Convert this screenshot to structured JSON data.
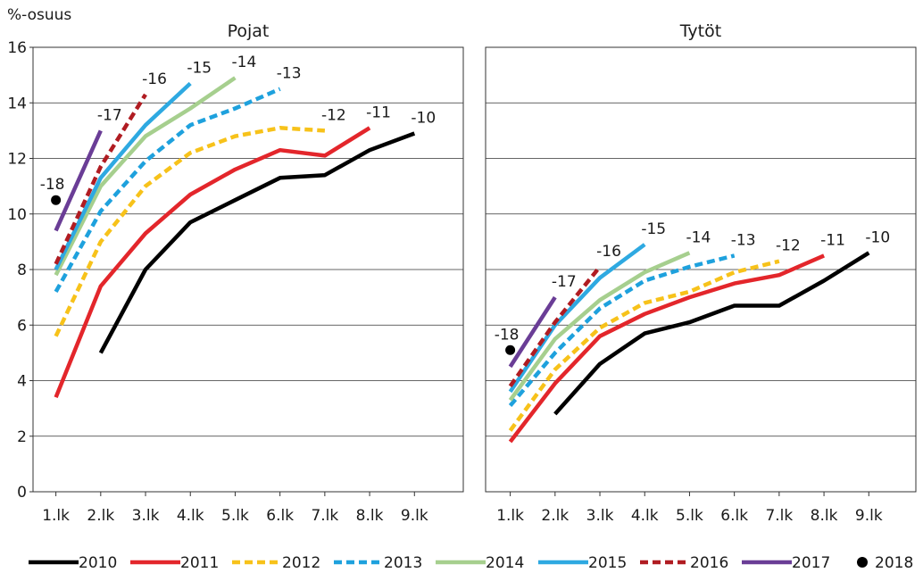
{
  "chart_data": {
    "type": "line",
    "ylabel": "%-osuus",
    "ylim": [
      0,
      16
    ],
    "yticks": [
      "0",
      "2",
      "4",
      "6",
      "8",
      "10",
      "12",
      "14",
      "16"
    ],
    "categories": [
      "1.lk",
      "2.lk",
      "3.lk",
      "4.lk",
      "5.lk",
      "6.lk",
      "7.lk",
      "8.lk",
      "9.lk"
    ],
    "grid": "horizontal",
    "legend_position": "bottom",
    "legend": [
      {
        "name": "2010",
        "color": "#000000",
        "style": "solid",
        "marker": "line"
      },
      {
        "name": "2011",
        "color": "#e3262b",
        "style": "solid",
        "marker": "line"
      },
      {
        "name": "2012",
        "color": "#f7c21a",
        "style": "dashed",
        "marker": "line"
      },
      {
        "name": "2013",
        "color": "#1ea1dd",
        "style": "dashed",
        "marker": "line"
      },
      {
        "name": "2014",
        "color": "#a6cf8e",
        "style": "solid",
        "marker": "line"
      },
      {
        "name": "2015",
        "color": "#2ea9e1",
        "style": "solid",
        "marker": "line"
      },
      {
        "name": "2016",
        "color": "#b01c22",
        "style": "dashed",
        "marker": "line"
      },
      {
        "name": "2017",
        "color": "#6a3d96",
        "style": "solid",
        "marker": "line"
      },
      {
        "name": "2018",
        "color": "#000000",
        "style": "none",
        "marker": "dot"
      }
    ],
    "panels": [
      {
        "title": "Pojat",
        "series": [
          {
            "legend": "2010",
            "label": "-10",
            "start": 1,
            "values": [
              5.0,
              8.0,
              9.7,
              10.5,
              11.3,
              11.4,
              12.3,
              12.9
            ]
          },
          {
            "legend": "2011",
            "label": "-11",
            "start": 0,
            "values": [
              3.4,
              7.4,
              9.3,
              10.7,
              11.6,
              12.3,
              12.1,
              13.1
            ]
          },
          {
            "legend": "2012",
            "label": "-12",
            "start": 0,
            "values": [
              5.6,
              9.0,
              11.0,
              12.2,
              12.8,
              13.1,
              13.0
            ]
          },
          {
            "legend": "2013",
            "label": "-13",
            "start": 0,
            "values": [
              7.2,
              10.1,
              11.9,
              13.2,
              13.8,
              14.5
            ]
          },
          {
            "legend": "2014",
            "label": "-14",
            "start": 0,
            "values": [
              7.8,
              11.0,
              12.8,
              13.8,
              14.9
            ]
          },
          {
            "legend": "2015",
            "label": "-15",
            "start": 0,
            "values": [
              8.0,
              11.3,
              13.2,
              14.7
            ]
          },
          {
            "legend": "2016",
            "label": "-16",
            "start": 0,
            "values": [
              8.2,
              11.7,
              14.3
            ]
          },
          {
            "legend": "2017",
            "label": "-17",
            "start": 0,
            "values": [
              9.4,
              13.0
            ]
          },
          {
            "legend": "2018",
            "label": "-18",
            "start": 0,
            "values": [
              10.5
            ]
          }
        ]
      },
      {
        "title": "Tytöt",
        "series": [
          {
            "legend": "2010",
            "label": "-10",
            "start": 1,
            "values": [
              2.8,
              4.6,
              5.7,
              6.1,
              6.7,
              6.7,
              7.6,
              8.6
            ]
          },
          {
            "legend": "2011",
            "label": "-11",
            "start": 0,
            "values": [
              1.8,
              3.9,
              5.6,
              6.4,
              7.0,
              7.5,
              7.8,
              8.5
            ]
          },
          {
            "legend": "2012",
            "label": "-12",
            "start": 0,
            "values": [
              2.2,
              4.4,
              5.9,
              6.8,
              7.2,
              7.9,
              8.3
            ]
          },
          {
            "legend": "2013",
            "label": "-13",
            "start": 0,
            "values": [
              3.1,
              5.0,
              6.6,
              7.6,
              8.1,
              8.5
            ]
          },
          {
            "legend": "2014",
            "label": "-14",
            "start": 0,
            "values": [
              3.3,
              5.5,
              6.9,
              7.9,
              8.6
            ]
          },
          {
            "legend": "2015",
            "label": "-15",
            "start": 0,
            "values": [
              3.6,
              6.0,
              7.7,
              8.9
            ]
          },
          {
            "legend": "2016",
            "label": "-16",
            "start": 0,
            "values": [
              3.8,
              6.1,
              8.1
            ]
          },
          {
            "legend": "2017",
            "label": "-17",
            "start": 0,
            "values": [
              4.5,
              7.0
            ]
          },
          {
            "legend": "2018",
            "label": "-18",
            "start": 0,
            "values": [
              5.1
            ]
          }
        ]
      }
    ]
  }
}
